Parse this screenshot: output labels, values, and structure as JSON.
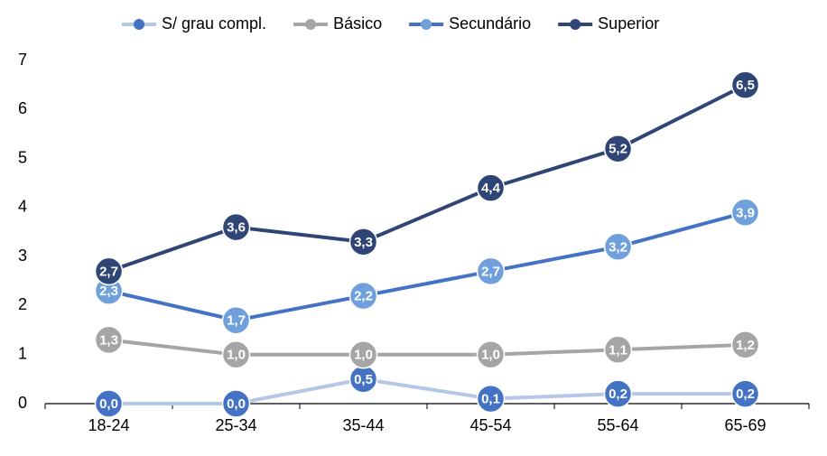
{
  "chart_data": {
    "type": "line",
    "categories": [
      "18-24",
      "25-34",
      "35-44",
      "45-54",
      "55-64",
      "65-69"
    ],
    "series": [
      {
        "name": "S/ grau compl.",
        "color": "#b4c7e7",
        "marker_color": "#4472c4",
        "values": [
          0.0,
          0.0,
          0.5,
          0.1,
          0.2,
          0.2
        ],
        "value_labels": [
          "0,0",
          "0,0",
          "0,5",
          "0,1",
          "0,2",
          "0,2"
        ]
      },
      {
        "name": "Básico",
        "color": "#a5a5a5",
        "marker_color": "#a5a5a5",
        "values": [
          1.3,
          1.0,
          1.0,
          1.0,
          1.1,
          1.2
        ],
        "value_labels": [
          "1,3",
          "1,0",
          "1,0",
          "1,0",
          "1,1",
          "1,2"
        ]
      },
      {
        "name": "Secundário",
        "color": "#4472c4",
        "marker_color": "#6fa0dc",
        "values": [
          2.3,
          1.7,
          2.2,
          2.7,
          3.2,
          3.9
        ],
        "value_labels": [
          "2,3",
          "1,7",
          "2,2",
          "2,7",
          "3,2",
          "3,9"
        ]
      },
      {
        "name": "Superior",
        "color": "#2f4575",
        "marker_color": "#2f4575",
        "values": [
          2.7,
          3.6,
          3.3,
          4.4,
          5.2,
          6.5
        ],
        "value_labels": [
          "2,7",
          "3,6",
          "3,3",
          "4,4",
          "5,2",
          "6,5"
        ]
      }
    ],
    "ylim": [
      0,
      7
    ],
    "yticks": [
      0,
      1,
      2,
      3,
      4,
      5,
      6,
      7
    ],
    "grid": false,
    "legend": "top"
  }
}
